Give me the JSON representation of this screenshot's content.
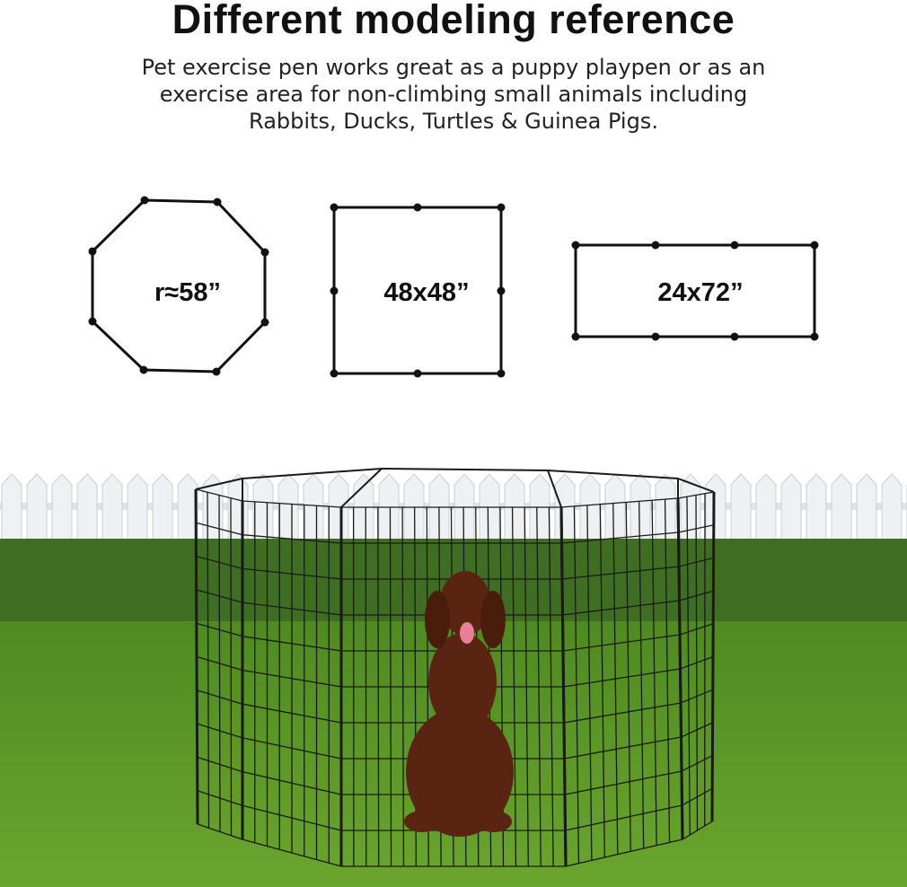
{
  "title": "Different modeling reference",
  "subtitle": [
    "Pet exercise pen works great as a puppy playpen or as an",
    "exercise area for non-climbing small animals including",
    "Rabbits, Ducks, Turtles & Guinea Pigs."
  ],
  "shapes": [
    {
      "type": "octagon",
      "label": "r≈58”"
    },
    {
      "type": "square",
      "label": "48x48”"
    },
    {
      "type": "rectangle",
      "label": "24x72”"
    }
  ],
  "photo": {
    "subject": "dog in octagonal wire pet pen",
    "colors": {
      "grass": "#5f9a2a",
      "hedge": "#3f6e22",
      "fence": "#e9ecef",
      "wire": "#1a1a1a",
      "dog": "#5a2412"
    }
  }
}
